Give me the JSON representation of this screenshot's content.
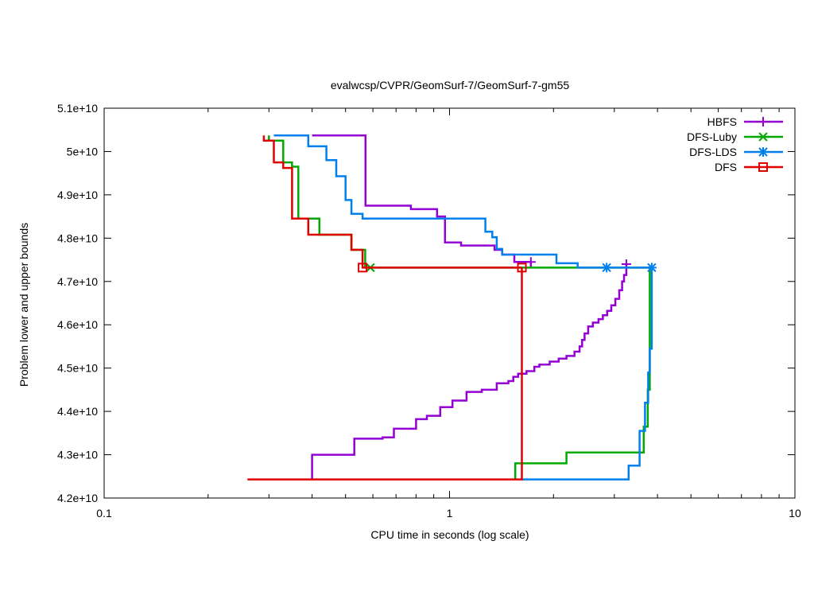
{
  "chart_data": {
    "type": "line",
    "title": "evalwcsp/CVPR/GeomSurf-7/GeomSurf-7-gm55",
    "xlabel": "CPU time in seconds (log scale)",
    "ylabel": "Problem lower and upper bounds",
    "x_scale": "log",
    "xlim": [
      0.1,
      10
    ],
    "ylim": [
      42000000000.0,
      51000000000.0
    ],
    "x_ticks": [
      {
        "v": 0.1,
        "label": "0.1"
      },
      {
        "v": 1,
        "label": "1"
      },
      {
        "v": 10,
        "label": "10"
      }
    ],
    "y_ticks": [
      {
        "v": 42000000000.0,
        "label": "4.2e+10"
      },
      {
        "v": 43000000000.0,
        "label": "4.3e+10"
      },
      {
        "v": 44000000000.0,
        "label": "4.4e+10"
      },
      {
        "v": 45000000000.0,
        "label": "4.5e+10"
      },
      {
        "v": 46000000000.0,
        "label": "4.6e+10"
      },
      {
        "v": 47000000000.0,
        "label": "4.7e+10"
      },
      {
        "v": 48000000000.0,
        "label": "4.8e+10"
      },
      {
        "v": 49000000000.0,
        "label": "4.9e+10"
      },
      {
        "v": 50000000000.0,
        "label": "5e+10"
      },
      {
        "v": 51000000000.0,
        "label": "5.1e+10"
      }
    ],
    "grid": false,
    "legend_position": "top-right",
    "series": [
      {
        "name": "HBFS",
        "color": "#9400d3",
        "marker": "plus",
        "paths": [
          [
            [
              0.4,
              50370000000.0
            ],
            [
              0.571,
              50370000000.0
            ],
            [
              0.571,
              48750000000.0
            ],
            [
              0.773,
              48750000000.0
            ],
            [
              0.773,
              48670000000.0
            ],
            [
              0.92,
              48670000000.0
            ],
            [
              0.92,
              48500000000.0
            ],
            [
              0.97,
              48500000000.0
            ],
            [
              0.97,
              47900000000.0
            ],
            [
              1.08,
              47900000000.0
            ],
            [
              1.08,
              47830000000.0
            ],
            [
              1.35,
              47830000000.0
            ],
            [
              1.35,
              47730000000.0
            ],
            [
              1.42,
              47730000000.0
            ],
            [
              1.42,
              47620000000.0
            ],
            [
              1.54,
              47620000000.0
            ],
            [
              1.54,
              47450000000.0
            ],
            [
              1.72,
              47450000000.0
            ],
            [
              1.72,
              47300000000.0
            ]
          ],
          [
            [
              0.4,
              42430000000.0
            ],
            [
              0.4,
              43000000000.0
            ],
            [
              0.53,
              43000000000.0
            ],
            [
              0.53,
              43370000000.0
            ],
            [
              0.64,
              43370000000.0
            ],
            [
              0.64,
              43400000000.0
            ],
            [
              0.69,
              43400000000.0
            ],
            [
              0.69,
              43600000000.0
            ],
            [
              0.8,
              43600000000.0
            ],
            [
              0.8,
              43820000000.0
            ],
            [
              0.86,
              43820000000.0
            ],
            [
              0.86,
              43900000000.0
            ],
            [
              0.94,
              43900000000.0
            ],
            [
              0.94,
              44100000000.0
            ],
            [
              1.02,
              44100000000.0
            ],
            [
              1.02,
              44250000000.0
            ],
            [
              1.12,
              44250000000.0
            ],
            [
              1.12,
              44450000000.0
            ],
            [
              1.24,
              44450000000.0
            ],
            [
              1.24,
              44500000000.0
            ],
            [
              1.37,
              44500000000.0
            ],
            [
              1.37,
              44650000000.0
            ],
            [
              1.48,
              44650000000.0
            ],
            [
              1.48,
              44700000000.0
            ],
            [
              1.53,
              44700000000.0
            ],
            [
              1.53,
              44800000000.0
            ],
            [
              1.58,
              44800000000.0
            ],
            [
              1.58,
              44870000000.0
            ],
            [
              1.67,
              44870000000.0
            ],
            [
              1.67,
              44930000000.0
            ],
            [
              1.76,
              44930000000.0
            ],
            [
              1.76,
              45030000000.0
            ],
            [
              1.82,
              45030000000.0
            ],
            [
              1.82,
              45080000000.0
            ],
            [
              1.95,
              45080000000.0
            ],
            [
              1.95,
              45150000000.0
            ],
            [
              2.07,
              45150000000.0
            ],
            [
              2.07,
              45220000000.0
            ],
            [
              2.18,
              45220000000.0
            ],
            [
              2.18,
              45280000000.0
            ],
            [
              2.3,
              45280000000.0
            ],
            [
              2.3,
              45380000000.0
            ],
            [
              2.38,
              45380000000.0
            ],
            [
              2.38,
              45500000000.0
            ],
            [
              2.42,
              45500000000.0
            ],
            [
              2.42,
              45650000000.0
            ],
            [
              2.46,
              45650000000.0
            ],
            [
              2.46,
              45800000000.0
            ],
            [
              2.52,
              45800000000.0
            ],
            [
              2.52,
              45960000000.0
            ],
            [
              2.6,
              45960000000.0
            ],
            [
              2.6,
              46050000000.0
            ],
            [
              2.7,
              46050000000.0
            ],
            [
              2.7,
              46130000000.0
            ],
            [
              2.78,
              46130000000.0
            ],
            [
              2.78,
              46220000000.0
            ],
            [
              2.86,
              46220000000.0
            ],
            [
              2.86,
              46320000000.0
            ],
            [
              2.94,
              46320000000.0
            ],
            [
              2.94,
              46450000000.0
            ],
            [
              3.02,
              46450000000.0
            ],
            [
              3.02,
              46600000000.0
            ],
            [
              3.1,
              46600000000.0
            ],
            [
              3.1,
              46800000000.0
            ],
            [
              3.16,
              46800000000.0
            ],
            [
              3.16,
              47000000000.0
            ],
            [
              3.2,
              47000000000.0
            ],
            [
              3.2,
              47150000000.0
            ],
            [
              3.25,
              47150000000.0
            ],
            [
              3.25,
              47400000000.0
            ]
          ]
        ],
        "markers": [
          [
            1.72,
            47450000000.0
          ],
          [
            3.25,
            47400000000.0
          ]
        ]
      },
      {
        "name": "DFS-Luby",
        "color": "#00aa00",
        "marker": "x",
        "paths": [
          [
            [
              0.3,
              50370000000.0
            ],
            [
              0.3,
              50250000000.0
            ],
            [
              0.33,
              50250000000.0
            ],
            [
              0.33,
              49750000000.0
            ],
            [
              0.35,
              49750000000.0
            ],
            [
              0.35,
              49650000000.0
            ],
            [
              0.365,
              49650000000.0
            ],
            [
              0.365,
              48450000000.0
            ],
            [
              0.42,
              48450000000.0
            ],
            [
              0.42,
              48080000000.0
            ],
            [
              0.52,
              48080000000.0
            ],
            [
              0.52,
              47730000000.0
            ],
            [
              0.57,
              47730000000.0
            ],
            [
              0.57,
              47320000000.0
            ],
            [
              0.59,
              47320000000.0
            ],
            [
              3.8,
              47320000000.0
            ]
          ],
          [
            [
              1.55,
              42430000000.0
            ],
            [
              1.55,
              42800000000.0
            ],
            [
              2.18,
              42800000000.0
            ],
            [
              2.18,
              43050000000.0
            ],
            [
              3.65,
              43050000000.0
            ],
            [
              3.65,
              43650000000.0
            ],
            [
              3.75,
              43650000000.0
            ],
            [
              3.75,
              44500000000.0
            ],
            [
              3.8,
              44500000000.0
            ],
            [
              3.8,
              47320000000.0
            ]
          ]
        ],
        "markers": [
          [
            0.59,
            47320000000.0
          ]
        ]
      },
      {
        "name": "DFS-LDS",
        "color": "#0080ee",
        "marker": "star",
        "paths": [
          [
            [
              0.31,
              50370000000.0
            ],
            [
              0.39,
              50370000000.0
            ],
            [
              0.39,
              50120000000.0
            ],
            [
              0.44,
              50120000000.0
            ],
            [
              0.44,
              49800000000.0
            ],
            [
              0.47,
              49800000000.0
            ],
            [
              0.47,
              49430000000.0
            ],
            [
              0.5,
              49430000000.0
            ],
            [
              0.5,
              48880000000.0
            ],
            [
              0.52,
              48880000000.0
            ],
            [
              0.52,
              48560000000.0
            ],
            [
              0.56,
              48560000000.0
            ],
            [
              0.56,
              48450000000.0
            ],
            [
              1.27,
              48450000000.0
            ],
            [
              1.27,
              48150000000.0
            ],
            [
              1.33,
              48150000000.0
            ],
            [
              1.33,
              48020000000.0
            ],
            [
              1.37,
              48020000000.0
            ],
            [
              1.37,
              47750000000.0
            ],
            [
              1.42,
              47750000000.0
            ],
            [
              1.42,
              47620000000.0
            ],
            [
              2.04,
              47620000000.0
            ],
            [
              2.04,
              47420000000.0
            ],
            [
              2.35,
              47420000000.0
            ],
            [
              2.35,
              47320000000.0
            ],
            [
              3.85,
              47320000000.0
            ]
          ],
          [
            [
              1.62,
              42430000000.0
            ],
            [
              3.3,
              42430000000.0
            ],
            [
              3.3,
              42750000000.0
            ],
            [
              3.55,
              42750000000.0
            ],
            [
              3.55,
              43550000000.0
            ],
            [
              3.68,
              43550000000.0
            ],
            [
              3.68,
              44200000000.0
            ],
            [
              3.76,
              44200000000.0
            ],
            [
              3.76,
              44900000000.0
            ],
            [
              3.8,
              44900000000.0
            ],
            [
              3.8,
              45450000000.0
            ],
            [
              3.85,
              45450000000.0
            ],
            [
              3.85,
              47320000000.0
            ]
          ]
        ],
        "markers": [
          [
            2.85,
            47320000000.0
          ],
          [
            3.85,
            47320000000.0
          ]
        ]
      },
      {
        "name": "DFS",
        "color": "#e00000",
        "marker": "square",
        "paths": [
          [
            [
              0.29,
              50370000000.0
            ],
            [
              0.29,
              50250000000.0
            ],
            [
              0.31,
              50250000000.0
            ],
            [
              0.31,
              49750000000.0
            ],
            [
              0.33,
              49750000000.0
            ],
            [
              0.33,
              49620000000.0
            ],
            [
              0.35,
              49620000000.0
            ],
            [
              0.35,
              48450000000.0
            ],
            [
              0.39,
              48450000000.0
            ],
            [
              0.39,
              48080000000.0
            ],
            [
              0.52,
              48080000000.0
            ],
            [
              0.52,
              47730000000.0
            ],
            [
              0.56,
              47730000000.0
            ],
            [
              0.56,
              47320000000.0
            ],
            [
              1.62,
              47320000000.0
            ]
          ],
          [
            [
              0.26,
              42430000000.0
            ],
            [
              1.62,
              42430000000.0
            ],
            [
              1.62,
              47320000000.0
            ]
          ]
        ],
        "markers": [
          [
            0.56,
            47320000000.0
          ],
          [
            1.62,
            47320000000.0
          ]
        ]
      }
    ]
  }
}
